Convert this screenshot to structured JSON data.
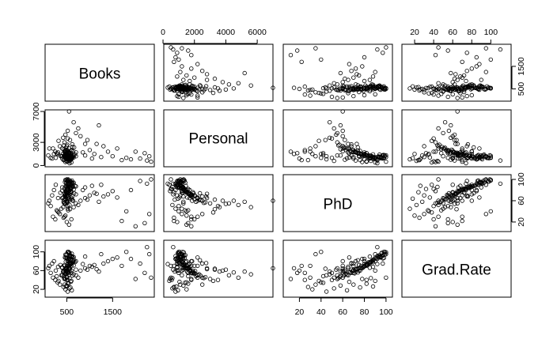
{
  "chart_data": {
    "type": "scatter",
    "title": "",
    "variables": [
      "Books",
      "Personal",
      "PhD",
      "Grad.Rate"
    ],
    "axes": {
      "Books": {
        "range": [
          96,
          2340
        ],
        "ticks": [
          "500",
          "1500"
        ],
        "tick_values": [
          500,
          1500
        ]
      },
      "Personal": {
        "range": [
          250,
          6800
        ],
        "ticks": [
          "0",
          "2000",
          "4000",
          "6000"
        ],
        "tick_values": [
          0,
          2000,
          4000,
          6000
        ]
      },
      "PhD": {
        "range": [
          8,
          103
        ],
        "ticks": [
          "20",
          "40",
          "60",
          "80",
          "100"
        ],
        "tick_values": [
          20,
          40,
          60,
          80,
          100
        ]
      },
      "Grad.Rate": {
        "range": [
          10,
          118
        ],
        "ticks": [
          "20",
          "60",
          "100"
        ],
        "tick_values": [
          20,
          60,
          100
        ]
      }
    },
    "left_axis_ticks": {
      "Personal": {
        "ticks": [
          "0",
          "3000",
          "7000"
        ],
        "tick_values": [
          0,
          3000,
          7000
        ]
      },
      "Grad.Rate": {
        "ticks": [
          "20",
          "60",
          "100"
        ],
        "tick_values": [
          20,
          60,
          100
        ]
      }
    },
    "right_axis_ticks": {
      "Books": {
        "ticks": [
          "500",
          "1500"
        ],
        "tick_values": [
          500,
          1500
        ]
      },
      "PhD": {
        "ticks": [
          "20",
          "60",
          "100"
        ],
        "tick_values": [
          20,
          60,
          100
        ]
      }
    },
    "top_axis": {
      "Personal": {
        "ticks": [
          "0",
          "2000",
          "4000",
          "6000"
        ],
        "tick_values": [
          0,
          2000,
          4000,
          6000
        ]
      },
      "Grad.Rate": {
        "ticks": [
          "20",
          "40",
          "60",
          "80",
          "100"
        ],
        "tick_values": [
          20,
          40,
          60,
          80,
          100
        ]
      }
    },
    "bottom_axis": {
      "Books": {
        "ticks": [
          "500",
          "1500"
        ],
        "tick_values": [
          500,
          1500
        ]
      },
      "PhD": {
        "ticks": [
          "20",
          "40",
          "60",
          "80",
          "100"
        ],
        "tick_values": [
          20,
          40,
          60,
          80,
          100
        ]
      }
    },
    "points": [
      [
        450,
        1800,
        70,
        55
      ],
      [
        500,
        1200,
        75,
        60
      ],
      [
        550,
        1500,
        80,
        70
      ],
      [
        600,
        1000,
        85,
        75
      ],
      [
        400,
        2200,
        65,
        50
      ],
      [
        520,
        900,
        90,
        80
      ],
      [
        480,
        1400,
        78,
        65
      ],
      [
        560,
        1700,
        72,
        58
      ],
      [
        620,
        1100,
        88,
        82
      ],
      [
        500,
        2500,
        60,
        45
      ],
      [
        540,
        800,
        92,
        85
      ],
      [
        470,
        1300,
        68,
        62
      ],
      [
        580,
        1600,
        82,
        73
      ],
      [
        510,
        1950,
        74,
        56
      ],
      [
        640,
        1250,
        86,
        78
      ],
      [
        430,
        2100,
        58,
        48
      ],
      [
        600,
        950,
        95,
        90
      ],
      [
        490,
        1450,
        77,
        66
      ],
      [
        530,
        1750,
        70,
        61
      ],
      [
        570,
        1050,
        84,
        76
      ],
      [
        450,
        3000,
        55,
        42
      ],
      [
        700,
        1200,
        87,
        80
      ],
      [
        500,
        1650,
        73,
        64
      ],
      [
        550,
        1350,
        79,
        68
      ],
      [
        480,
        2300,
        62,
        52
      ],
      [
        520,
        1150,
        83,
        74
      ],
      [
        600,
        1900,
        76,
        60
      ],
      [
        560,
        850,
        91,
        86
      ],
      [
        420,
        1550,
        66,
        57
      ],
      [
        650,
        1400,
        81,
        71
      ],
      [
        500,
        2050,
        69,
        59
      ],
      [
        540,
        1000,
        89,
        84
      ],
      [
        470,
        1850,
        71,
        54
      ],
      [
        590,
        1250,
        85,
        77
      ],
      [
        510,
        2700,
        57,
        46
      ],
      [
        630,
        1100,
        93,
        88
      ],
      [
        460,
        1600,
        74,
        63
      ],
      [
        580,
        900,
        88,
        83
      ],
      [
        500,
        1400,
        80,
        69
      ],
      [
        550,
        2200,
        64,
        51
      ],
      [
        400,
        1200,
        79,
        67
      ],
      [
        700,
        1700,
        72,
        62
      ],
      [
        520,
        3500,
        50,
        40
      ],
      [
        480,
        1000,
        86,
        79
      ],
      [
        600,
        1500,
        77,
        70
      ],
      [
        540,
        1800,
        68,
        55
      ],
      [
        450,
        1300,
        83,
        72
      ],
      [
        620,
        2400,
        61,
        49
      ],
      [
        500,
        950,
        90,
        87
      ],
      [
        560,
        1650,
        75,
        65
      ],
      [
        530,
        1150,
        87,
        81
      ],
      [
        470,
        2000,
        63,
        53
      ],
      [
        590,
        1350,
        82,
        74
      ],
      [
        510,
        1750,
        70,
        60
      ],
      [
        440,
        2600,
        56,
        44
      ],
      [
        650,
        1050,
        94,
        89
      ],
      [
        500,
        1550,
        76,
        66
      ],
      [
        570,
        1200,
        84,
        78
      ],
      [
        480,
        1900,
        67,
        56
      ],
      [
        600,
        800,
        92,
        91
      ],
      [
        300,
        1500,
        40,
        35
      ],
      [
        350,
        2500,
        35,
        30
      ],
      [
        250,
        1800,
        25,
        40
      ],
      [
        380,
        1200,
        45,
        50
      ],
      [
        200,
        2200,
        30,
        45
      ],
      [
        150,
        1000,
        50,
        55
      ],
      [
        320,
        3200,
        38,
        38
      ],
      [
        280,
        1600,
        42,
        48
      ],
      [
        700,
        4200,
        55,
        50
      ],
      [
        800,
        3800,
        60,
        60
      ],
      [
        900,
        2800,
        65,
        65
      ],
      [
        750,
        4800,
        52,
        45
      ],
      [
        1000,
        2000,
        70,
        70
      ],
      [
        1100,
        1500,
        75,
        72
      ],
      [
        1200,
        5200,
        58,
        58
      ],
      [
        950,
        3300,
        62,
        62
      ],
      [
        1300,
        2500,
        68,
        75
      ],
      [
        1400,
        1800,
        72,
        80
      ],
      [
        1500,
        1200,
        78,
        85
      ],
      [
        1600,
        2200,
        66,
        88
      ],
      [
        900,
        1300,
        85,
        90
      ],
      [
        1050,
        900,
        88,
        68
      ],
      [
        850,
        1700,
        80,
        74
      ],
      [
        1250,
        1100,
        90,
        95
      ],
      [
        1150,
        2800,
        73,
        63
      ],
      [
        650,
        5600,
        48,
        52
      ],
      [
        550,
        7000,
        60,
        65
      ],
      [
        2340,
        500,
        100,
        45
      ],
      [
        2000,
        1800,
        12,
        42
      ],
      [
        1700,
        700,
        22,
        70
      ],
      [
        1800,
        1000,
        40,
        100
      ],
      [
        1900,
        800,
        80,
        85
      ],
      [
        2200,
        1600,
        18,
        55
      ],
      [
        2100,
        900,
        97,
        75
      ],
      [
        2300,
        1200,
        35,
        95
      ],
      [
        2250,
        650,
        92,
        110
      ],
      [
        520,
        1050,
        98,
        100
      ],
      [
        560,
        950,
        96,
        98
      ],
      [
        500,
        1100,
        100,
        95
      ],
      [
        540,
        1250,
        99,
        100
      ],
      [
        580,
        1350,
        97,
        92
      ],
      [
        460,
        1150,
        95,
        88
      ],
      [
        610,
        980,
        98,
        96
      ],
      [
        490,
        1420,
        94,
        93
      ],
      [
        530,
        1320,
        100,
        99
      ],
      [
        550,
        1020,
        96,
        97
      ],
      [
        470,
        1230,
        99,
        94
      ],
      [
        600,
        1180,
        93,
        91
      ],
      [
        510,
        1270,
        97,
        86
      ],
      [
        570,
        1080,
        95,
        89
      ],
      [
        480,
        1370,
        98,
        87
      ],
      [
        620,
        1130,
        94,
        90
      ],
      [
        430,
        700,
        28,
        25
      ],
      [
        470,
        1500,
        32,
        20
      ],
      [
        520,
        800,
        45,
        15
      ],
      [
        560,
        600,
        52,
        22
      ],
      [
        500,
        1300,
        58,
        28
      ],
      [
        610,
        950,
        64,
        18
      ],
      [
        450,
        1100,
        70,
        30
      ],
      [
        580,
        700,
        76,
        24
      ],
      [
        540,
        1600,
        82,
        32
      ],
      [
        480,
        850,
        88,
        26
      ],
      [
        530,
        1400,
        42,
        34
      ],
      [
        590,
        1050,
        66,
        36
      ],
      [
        420,
        3600,
        48,
        58
      ],
      [
        470,
        4000,
        54,
        62
      ],
      [
        520,
        4500,
        60,
        56
      ],
      [
        570,
        3300,
        44,
        64
      ],
      [
        500,
        900,
        20,
        60
      ],
      [
        550,
        1500,
        15,
        65
      ],
      [
        600,
        2000,
        25,
        55
      ],
      [
        450,
        1800,
        30,
        70
      ],
      [
        500,
        550,
        82,
        40
      ],
      [
        560,
        600,
        86,
        44
      ],
      [
        600,
        400,
        90,
        38
      ],
      [
        470,
        450,
        78,
        42
      ],
      [
        640,
        1850,
        60,
        80
      ],
      [
        660,
        2350,
        74,
        82
      ],
      [
        620,
        2750,
        68,
        76
      ],
      [
        680,
        1450,
        88,
        78
      ],
      [
        96,
        1300,
        55,
        65
      ],
      [
        120,
        2200,
        60,
        70
      ],
      [
        180,
        900,
        70,
        75
      ],
      [
        220,
        1500,
        80,
        80
      ],
      [
        260,
        1000,
        90,
        60
      ],
      [
        310,
        1700,
        65,
        68
      ],
      [
        360,
        1250,
        75,
        72
      ],
      [
        400,
        900,
        85,
        66
      ],
      [
        440,
        750,
        62,
        58
      ],
      [
        480,
        650,
        72,
        62
      ],
      [
        520,
        500,
        82,
        70
      ],
      [
        560,
        300,
        92,
        74
      ]
    ]
  }
}
